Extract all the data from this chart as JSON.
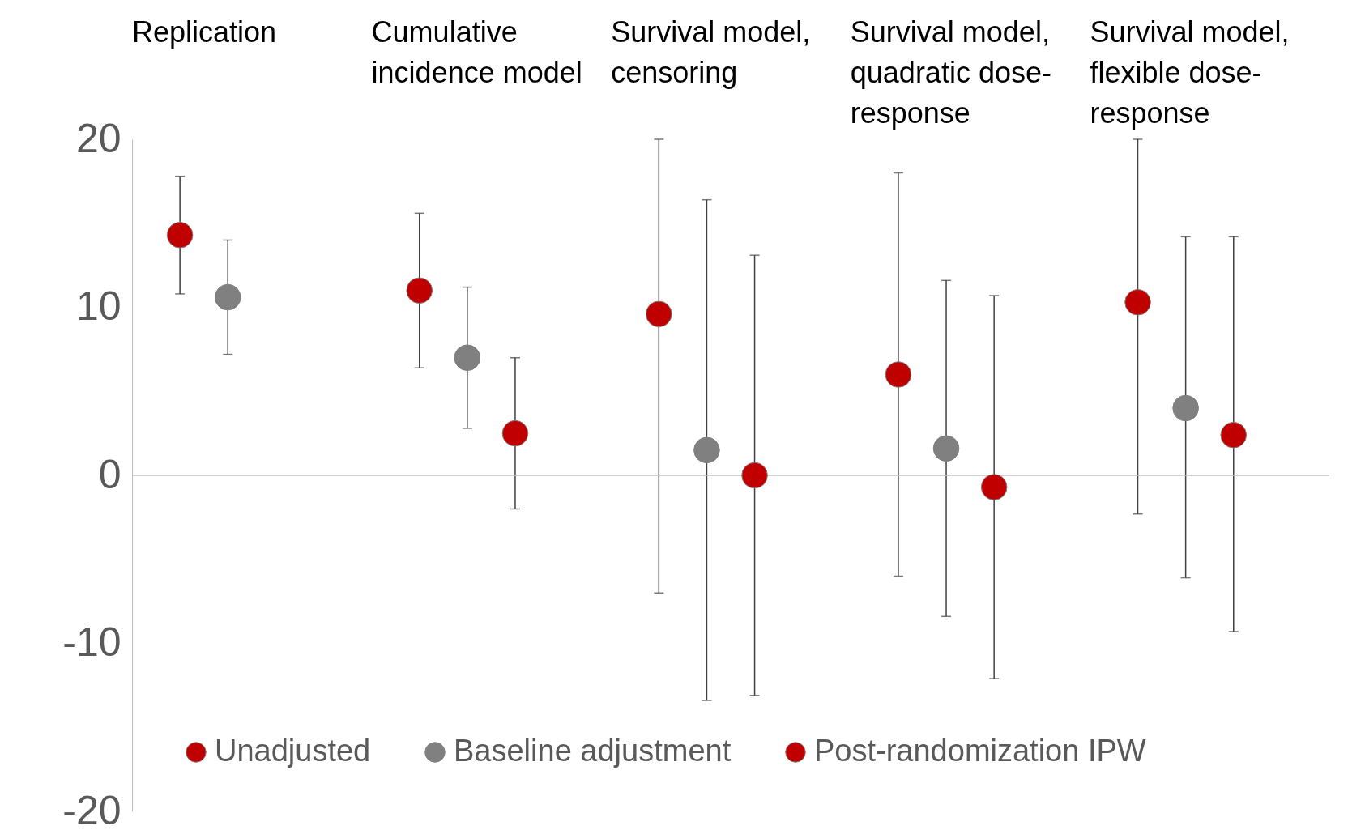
{
  "chart_data": {
    "type": "scatter",
    "categories": [
      "Replication",
      "Cumulative incidence model",
      "Survival model, censoring",
      "Survival model, quadratic dose-response",
      "Survival model, flexible dose-response"
    ],
    "series": [
      {
        "name": "Unadjusted",
        "color": "#c00000",
        "values": [
          14.3,
          11.0,
          9.6,
          6.0,
          10.3
        ],
        "errors": [
          [
            10.8,
            17.8
          ],
          [
            6.4,
            15.6
          ],
          [
            -7.0,
            20
          ],
          [
            -6.0,
            18.0
          ],
          [
            -2.3,
            20
          ]
        ]
      },
      {
        "name": "Baseline adjustment",
        "color": "#808080",
        "values": [
          10.6,
          7.0,
          1.5,
          1.6,
          4.0
        ],
        "errors": [
          [
            7.2,
            14.0
          ],
          [
            2.8,
            11.2
          ],
          [
            -13.4,
            16.4
          ],
          [
            -8.4,
            11.6
          ],
          [
            -6.1,
            14.2
          ]
        ]
      },
      {
        "name": "Post-randomization IPW",
        "color": "#c00000",
        "values": [
          null,
          2.5,
          0.0,
          -0.7,
          2.4
        ],
        "errors": [
          null,
          [
            -2.0,
            7.0
          ],
          [
            -13.1,
            13.1
          ],
          [
            -12.1,
            10.7
          ],
          [
            -9.3,
            14.2
          ]
        ]
      }
    ],
    "ylim": [
      -20,
      20
    ],
    "yticks": [
      -20,
      -10,
      0,
      10,
      20
    ],
    "ref_lines": [
      {
        "axis": "y",
        "value": 0,
        "color": "#bfbfbf"
      }
    ],
    "legend": "bottom",
    "grid": false,
    "marker": "circle"
  }
}
